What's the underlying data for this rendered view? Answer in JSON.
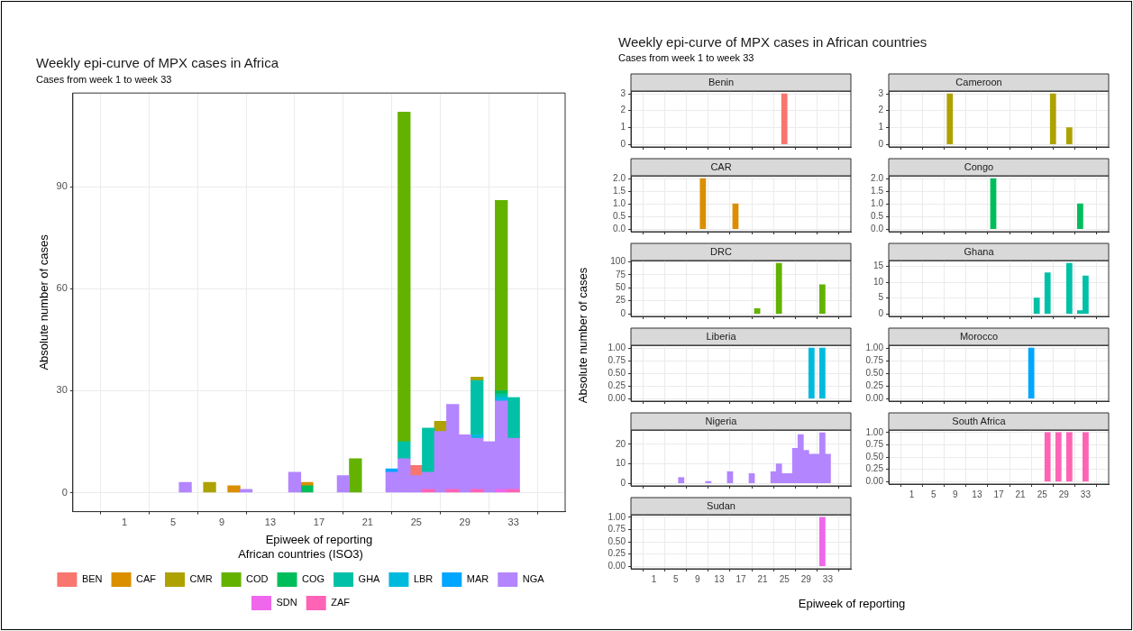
{
  "chart_data": [
    {
      "type": "bar",
      "title": "Weekly epi-curve of MPX cases in Africa",
      "subtitle": "Cases from week 1 to week 33",
      "xlabel": "Epiweek of reporting",
      "ylabel": "Absolute number of cases",
      "legend_title": "African countries (ISO3)",
      "stacked": true,
      "grid": true,
      "legend": "bottom",
      "xlim": [
        -1,
        35
      ],
      "xticks": [
        1,
        5,
        9,
        13,
        17,
        21,
        25,
        29,
        33
      ],
      "ylim": [
        -5.6,
        117.6
      ],
      "yticks": [
        0,
        30,
        60,
        90
      ],
      "x": [
        6,
        8,
        10,
        11,
        15,
        16,
        19,
        20,
        23,
        24,
        25,
        26,
        27,
        28,
        29,
        30,
        31,
        32,
        33
      ],
      "series": [
        {
          "name": "ZAF",
          "color": "#ff63b6",
          "values": [
            null,
            null,
            null,
            null,
            null,
            null,
            null,
            null,
            null,
            null,
            null,
            1,
            null,
            1,
            null,
            1,
            null,
            null,
            1
          ]
        },
        {
          "name": "SDN",
          "color": "#ef67eb",
          "values": [
            null,
            null,
            null,
            null,
            null,
            null,
            null,
            null,
            null,
            null,
            null,
            null,
            null,
            null,
            null,
            null,
            null,
            1,
            null
          ]
        },
        {
          "name": "NGA",
          "color": "#b385ff",
          "values": [
            3,
            null,
            null,
            1,
            6,
            null,
            5,
            null,
            6,
            10,
            5,
            5,
            18,
            25,
            17,
            15,
            15,
            26,
            15
          ]
        },
        {
          "name": "MAR",
          "color": "#00a6ff",
          "values": [
            null,
            null,
            null,
            null,
            null,
            null,
            null,
            null,
            1,
            null,
            null,
            null,
            null,
            null,
            null,
            null,
            null,
            null,
            null
          ]
        },
        {
          "name": "LBR",
          "color": "#00bade",
          "values": [
            null,
            null,
            null,
            null,
            null,
            null,
            null,
            null,
            null,
            null,
            null,
            null,
            null,
            null,
            null,
            1,
            null,
            1,
            null
          ]
        },
        {
          "name": "GHA",
          "color": "#00c1a7",
          "values": [
            null,
            null,
            null,
            null,
            null,
            null,
            null,
            null,
            null,
            5,
            null,
            13,
            null,
            null,
            null,
            16,
            null,
            1,
            12
          ]
        },
        {
          "name": "COG",
          "color": "#00bd5c",
          "values": [
            null,
            null,
            null,
            null,
            null,
            2,
            null,
            null,
            null,
            null,
            null,
            null,
            null,
            null,
            null,
            null,
            null,
            1,
            null
          ]
        },
        {
          "name": "COD",
          "color": "#64b200",
          "values": [
            null,
            null,
            null,
            null,
            null,
            null,
            null,
            10,
            null,
            97,
            null,
            null,
            null,
            null,
            null,
            null,
            null,
            56,
            null
          ]
        },
        {
          "name": "CMR",
          "color": "#aea200",
          "values": [
            null,
            3,
            null,
            null,
            null,
            null,
            null,
            null,
            null,
            null,
            null,
            null,
            3,
            null,
            null,
            1,
            null,
            null,
            null
          ]
        },
        {
          "name": "CAF",
          "color": "#db8e00",
          "values": [
            null,
            null,
            2,
            null,
            null,
            1,
            null,
            null,
            null,
            null,
            null,
            null,
            null,
            null,
            null,
            null,
            null,
            null,
            null
          ]
        },
        {
          "name": "BEN",
          "color": "#f8766d",
          "values": [
            null,
            null,
            null,
            null,
            null,
            null,
            null,
            null,
            null,
            null,
            3,
            null,
            null,
            null,
            null,
            null,
            null,
            null,
            null
          ]
        }
      ]
    },
    {
      "type": "other",
      "title": "Weekly epi-curve of MPX cases in African countries",
      "subtitle": "Cases from week 1 to week 33",
      "xlabel": "Epiweek of reporting",
      "ylabel": "Absolute number of cases"
    },
    {
      "type": "bar",
      "title": "Benin",
      "grid": true,
      "tick_labels": "y",
      "xlim": [
        -1,
        35
      ],
      "xticks": [
        1,
        5,
        9,
        13,
        17,
        21,
        25,
        29,
        33
      ],
      "ylim": [
        -0.15,
        3.15
      ],
      "yticks": [
        0,
        1,
        2,
        3
      ],
      "color": "#f8766d",
      "x": [
        25
      ],
      "values": [
        3
      ]
    },
    {
      "type": "bar",
      "title": "Cameroon",
      "grid": true,
      "tick_labels": "y",
      "xlim": [
        -1,
        35
      ],
      "xticks": [
        1,
        5,
        9,
        13,
        17,
        21,
        25,
        29,
        33
      ],
      "ylim": [
        -0.15,
        3.15
      ],
      "yticks": [
        0,
        1,
        2,
        3
      ],
      "color": "#aea200",
      "x": [
        8,
        27,
        30
      ],
      "values": [
        3,
        3,
        1
      ]
    },
    {
      "type": "bar",
      "title": "CAR",
      "grid": true,
      "tick_labels": "y",
      "xlim": [
        -1,
        35
      ],
      "xticks": [
        1,
        5,
        9,
        13,
        17,
        21,
        25,
        29,
        33
      ],
      "ylim": [
        -0.1,
        2.1
      ],
      "yticks": [
        {
          "value": 0,
          "label": "0.0"
        },
        {
          "value": 0.5,
          "label": "0.5"
        },
        {
          "value": 1,
          "label": "1.0"
        },
        {
          "value": 1.5,
          "label": "1.5"
        },
        {
          "value": 2,
          "label": "2.0"
        }
      ],
      "color": "#db8e00",
      "x": [
        10,
        16
      ],
      "values": [
        2,
        1
      ]
    },
    {
      "type": "bar",
      "title": "Congo",
      "grid": true,
      "tick_labels": "y",
      "xlim": [
        -1,
        35
      ],
      "xticks": [
        1,
        5,
        9,
        13,
        17,
        21,
        25,
        29,
        33
      ],
      "ylim": [
        -0.1,
        2.1
      ],
      "yticks": [
        {
          "value": 0,
          "label": "0.0"
        },
        {
          "value": 0.5,
          "label": "0.5"
        },
        {
          "value": 1,
          "label": "1.0"
        },
        {
          "value": 1.5,
          "label": "1.5"
        },
        {
          "value": 2,
          "label": "2.0"
        }
      ],
      "color": "#00bd5c",
      "x": [
        16,
        32
      ],
      "values": [
        2,
        1
      ]
    },
    {
      "type": "bar",
      "title": "DRC",
      "grid": true,
      "tick_labels": "y",
      "xlim": [
        -1,
        35
      ],
      "xticks": [
        1,
        5,
        9,
        13,
        17,
        21,
        25,
        29,
        33
      ],
      "ylim": [
        -4.85,
        101.85
      ],
      "yticks": [
        0,
        25,
        50,
        75,
        100
      ],
      "color": "#64b200",
      "x": [
        20,
        24,
        32
      ],
      "values": [
        10,
        97,
        56
      ]
    },
    {
      "type": "bar",
      "title": "Ghana",
      "grid": true,
      "tick_labels": "y",
      "xlim": [
        -1,
        35
      ],
      "xticks": [
        1,
        5,
        9,
        13,
        17,
        21,
        25,
        29,
        33
      ],
      "ylim": [
        -0.8,
        16.8
      ],
      "yticks": [
        0,
        5,
        10,
        15
      ],
      "color": "#00c1a7",
      "x": [
        24,
        26,
        30,
        32,
        33
      ],
      "values": [
        5,
        13,
        16,
        1,
        12
      ]
    },
    {
      "type": "bar",
      "title": "Liberia",
      "grid": true,
      "tick_labels": "y",
      "xlim": [
        -1,
        35
      ],
      "xticks": [
        1,
        5,
        9,
        13,
        17,
        21,
        25,
        29,
        33
      ],
      "ylim": [
        -0.05,
        1.05
      ],
      "yticks": [
        {
          "value": 0,
          "label": "0.00"
        },
        {
          "value": 0.25,
          "label": "0.25"
        },
        {
          "value": 0.5,
          "label": "0.50"
        },
        {
          "value": 0.75,
          "label": "0.75"
        },
        {
          "value": 1,
          "label": "1.00"
        }
      ],
      "color": "#00bade",
      "x": [
        30,
        32
      ],
      "values": [
        1,
        1
      ]
    },
    {
      "type": "bar",
      "title": "Morocco",
      "grid": true,
      "tick_labels": "y",
      "xlim": [
        -1,
        35
      ],
      "xticks": [
        1,
        5,
        9,
        13,
        17,
        21,
        25,
        29,
        33
      ],
      "ylim": [
        -0.05,
        1.05
      ],
      "yticks": [
        {
          "value": 0,
          "label": "0.00"
        },
        {
          "value": 0.25,
          "label": "0.25"
        },
        {
          "value": 0.5,
          "label": "0.50"
        },
        {
          "value": 0.75,
          "label": "0.75"
        },
        {
          "value": 1,
          "label": "1.00"
        }
      ],
      "color": "#00a6ff",
      "x": [
        23
      ],
      "values": [
        1
      ]
    },
    {
      "type": "bar",
      "title": "Nigeria",
      "grid": true,
      "tick_labels": "y",
      "xlim": [
        -1,
        35
      ],
      "xticks": [
        1,
        5,
        9,
        13,
        17,
        21,
        25,
        29,
        33
      ],
      "ylim": [
        -1.3,
        27.3
      ],
      "yticks": [
        0,
        10,
        20
      ],
      "color": "#b385ff",
      "x": [
        6,
        11,
        15,
        19,
        23,
        24,
        25,
        26,
        27,
        28,
        29,
        30,
        31,
        32,
        33
      ],
      "values": [
        3,
        1,
        6,
        5,
        6,
        10,
        5,
        5,
        18,
        25,
        17,
        15,
        15,
        26,
        15
      ]
    },
    {
      "type": "bar",
      "title": "South Africa",
      "grid": true,
      "xlim": [
        -1,
        35
      ],
      "xticks": [
        1,
        5,
        9,
        13,
        17,
        21,
        25,
        29,
        33
      ],
      "ylim": [
        -0.05,
        1.05
      ],
      "yticks": [
        {
          "value": 0,
          "label": "0.00"
        },
        {
          "value": 0.25,
          "label": "0.25"
        },
        {
          "value": 0.5,
          "label": "0.50"
        },
        {
          "value": 0.75,
          "label": "0.75"
        },
        {
          "value": 1,
          "label": "1.00"
        }
      ],
      "color": "#ff63b6",
      "x": [
        26,
        28,
        30,
        33
      ],
      "values": [
        1,
        1,
        1,
        1
      ]
    },
    {
      "type": "bar",
      "title": "Sudan",
      "grid": true,
      "xlim": [
        -1,
        35
      ],
      "xticks": [
        1,
        5,
        9,
        13,
        17,
        21,
        25,
        29,
        33
      ],
      "ylim": [
        -0.05,
        1.05
      ],
      "yticks": [
        {
          "value": 0,
          "label": "0.00"
        },
        {
          "value": 0.25,
          "label": "0.25"
        },
        {
          "value": 0.5,
          "label": "0.50"
        },
        {
          "value": 0.75,
          "label": "0.75"
        },
        {
          "value": 1,
          "label": "1.00"
        }
      ],
      "color": "#ef67eb",
      "x": [
        32
      ],
      "values": [
        1
      ]
    }
  ]
}
